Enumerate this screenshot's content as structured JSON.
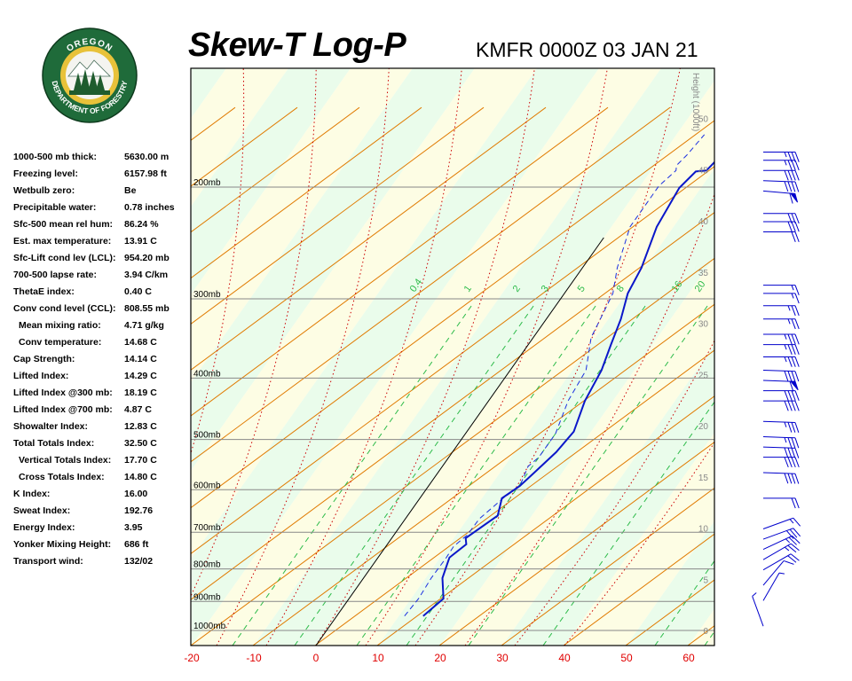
{
  "header": {
    "title": "Skew-T Log-P",
    "station_time": "KMFR 0000Z 03 JAN 21"
  },
  "logo": {
    "top_text": "OREGON",
    "bottom_text": "DEPARTMENT OF FORESTRY",
    "colors": {
      "ring": "#1f6b3a",
      "gold": "#e8c23a",
      "tree": "#1f5c2e"
    }
  },
  "indices": [
    {
      "label": "1000-500 mb thick:",
      "value": "5630.00 m"
    },
    {
      "label": "Freezing level:",
      "value": "6157.98 ft"
    },
    {
      "label": "Wetbulb zero:",
      "value": "Be"
    },
    {
      "label": "Precipitable water:",
      "value": "0.78 inches"
    },
    {
      "label": "Sfc-500 mean rel hum:",
      "value": "86.24 %"
    },
    {
      "label": "Est. max temperature:",
      "value": "13.91 C"
    },
    {
      "label": "Sfc-Lift cond lev (LCL):",
      "value": "954.20 mb"
    },
    {
      "label": "700-500 lapse rate:",
      "value": "3.94 C/km"
    },
    {
      "label": "ThetaE index:",
      "value": "0.40 C"
    },
    {
      "label": "Conv cond level (CCL):",
      "value": "808.55 mb"
    },
    {
      "label": "Mean mixing ratio:",
      "value": "4.71 g/kg",
      "indent": true
    },
    {
      "label": "Conv temperature:",
      "value": "14.68 C",
      "indent": true
    },
    {
      "label": "Cap Strength:",
      "value": "14.14 C"
    },
    {
      "label": "Lifted Index:",
      "value": "14.29 C"
    },
    {
      "label": "Lifted Index @300 mb:",
      "value": "18.19 C"
    },
    {
      "label": "Lifted Index @700 mb:",
      "value": "4.87 C"
    },
    {
      "label": "Showalter Index:",
      "value": "12.83 C"
    },
    {
      "label": "Total Totals Index:",
      "value": "32.50 C"
    },
    {
      "label": "Vertical Totals Index:",
      "value": "17.70 C",
      "indent": true
    },
    {
      "label": "Cross Totals Index:",
      "value": "14.80 C",
      "indent": true
    },
    {
      "label": "K Index:",
      "value": "16.00"
    },
    {
      "label": "Sweat Index:",
      "value": "192.76"
    },
    {
      "label": "Energy Index:",
      "value": "3.95"
    },
    {
      "label": "Yonker Mixing Height:",
      "value": "686 ft"
    },
    {
      "label": "Transport wind:",
      "value": "132/02"
    }
  ],
  "chart_data": {
    "type": "line",
    "x_axis": {
      "label": "",
      "min": -20,
      "max": 64,
      "ticks": [
        -20,
        -10,
        0,
        10,
        20,
        30,
        40,
        50,
        60
      ],
      "tick_labels": [
        "-20",
        "-10",
        "0",
        "10",
        "20",
        "30",
        "40",
        "50",
        "60"
      ]
    },
    "pressure_levels": [
      {
        "p": 200,
        "label": "200mb"
      },
      {
        "p": 300,
        "label": "300mb"
      },
      {
        "p": 400,
        "label": "400mb"
      },
      {
        "p": 500,
        "label": "500mb"
      },
      {
        "p": 600,
        "label": "600mb"
      },
      {
        "p": 700,
        "label": "700mb"
      },
      {
        "p": 800,
        "label": "800mb"
      },
      {
        "p": 900,
        "label": "900mb"
      },
      {
        "p": 1000,
        "label": "1000mb"
      }
    ],
    "height_axis": {
      "label": "Height (1000ft)",
      "ticks": [
        0,
        5,
        10,
        15,
        20,
        25,
        30,
        35,
        40,
        45,
        50
      ],
      "tick_labels": [
        "0",
        "5",
        "10",
        "15",
        "20",
        "25",
        "30",
        "35",
        "40",
        "45",
        "50"
      ]
    },
    "mixing_ratio_labels": [
      "0.4",
      "1",
      "2",
      "3",
      "5",
      "8",
      "16",
      "20"
    ],
    "temperature_profile": [
      [
        13.9,
        1.5
      ],
      [
        15.2,
        3.2
      ],
      [
        12.7,
        5.2
      ],
      [
        11.5,
        7.2
      ],
      [
        12.7,
        8.5
      ],
      [
        11.9,
        9.1
      ],
      [
        14.5,
        11.3
      ],
      [
        13.2,
        13.0
      ],
      [
        14.7,
        14.2
      ],
      [
        15.5,
        15.5
      ],
      [
        16.7,
        17.5
      ],
      [
        17.2,
        19.5
      ],
      [
        15.5,
        22.5
      ],
      [
        14.7,
        25.5
      ],
      [
        13.3,
        28.0
      ],
      [
        12.0,
        30.5
      ],
      [
        10.2,
        33.0
      ],
      [
        9.5,
        35.5
      ],
      [
        7.3,
        39.5
      ],
      [
        6.5,
        43.3
      ],
      [
        7.3,
        44.9
      ],
      [
        8.9,
        45.0
      ],
      [
        9.5,
        46.4
      ],
      [
        10.8,
        47.0
      ],
      [
        12.1,
        47.9
      ]
    ],
    "dewpoint_profile": [
      [
        10.9,
        1.5
      ],
      [
        11.2,
        3.2
      ],
      [
        10.9,
        5.2
      ],
      [
        11.0,
        7.2
      ],
      [
        10.9,
        8.3
      ],
      [
        11.8,
        9.4
      ],
      [
        11.9,
        11.0
      ],
      [
        13.4,
        13.0
      ],
      [
        14.7,
        14.2
      ],
      [
        13.8,
        16.1
      ],
      [
        14.5,
        17.0
      ],
      [
        14.5,
        19.3
      ],
      [
        12.8,
        22.5
      ],
      [
        12.2,
        25.5
      ],
      [
        9.3,
        28.7
      ],
      [
        8.7,
        30.5
      ],
      [
        7.8,
        33.0
      ],
      [
        5.6,
        35.5
      ],
      [
        3.0,
        39.5
      ],
      [
        3.0,
        43.5
      ],
      [
        4.0,
        45.0
      ],
      [
        3.5,
        45.5
      ],
      [
        4.0,
        46.5
      ],
      [
        4.5,
        48.5
      ]
    ],
    "freezing_isotherm": "0 C",
    "grid": true,
    "colors": {
      "temperature": "#0a17c9",
      "dewpoint": "#1a2fe0",
      "dry_adiabat": "#e07a00",
      "moist_adiabat": "#cc0000",
      "mixing_ratio": "#2dbb4a",
      "isotherm_zero": "#000000",
      "band_yellow": "#fdfde4",
      "band_green": "#eafceb",
      "tick_red": "#e00000",
      "barb": "#0000cc"
    }
  },
  "wind_barbs": [
    {
      "h": 0.5,
      "dir": 20,
      "kts": 5
    },
    {
      "h": 3.0,
      "dir": 330,
      "kts": 5
    },
    {
      "h": 4.5,
      "dir": 320,
      "kts": 10
    },
    {
      "h": 6.0,
      "dir": 300,
      "kts": 20
    },
    {
      "h": 7.0,
      "dir": 300,
      "kts": 25
    },
    {
      "h": 8.0,
      "dir": 295,
      "kts": 25
    },
    {
      "h": 9.0,
      "dir": 290,
      "kts": 30
    },
    {
      "h": 10.0,
      "dir": 290,
      "kts": 15
    },
    {
      "h": 13.0,
      "dir": 270,
      "kts": 20
    },
    {
      "h": 15.5,
      "dir": 268,
      "kts": 40
    },
    {
      "h": 17.0,
      "dir": 270,
      "kts": 40
    },
    {
      "h": 18.0,
      "dir": 268,
      "kts": 40
    },
    {
      "h": 19.0,
      "dir": 268,
      "kts": 35
    },
    {
      "h": 20.5,
      "dir": 268,
      "kts": 35
    },
    {
      "h": 22.5,
      "dir": 270,
      "kts": 40
    },
    {
      "h": 23.5,
      "dir": 270,
      "kts": 40
    },
    {
      "h": 24.5,
      "dir": 268,
      "kts": 60
    },
    {
      "h": 25.5,
      "dir": 268,
      "kts": 40
    },
    {
      "h": 26.8,
      "dir": 270,
      "kts": 35
    },
    {
      "h": 28.0,
      "dir": 270,
      "kts": 35
    },
    {
      "h": 29.0,
      "dir": 270,
      "kts": 35
    },
    {
      "h": 30.5,
      "dir": 270,
      "kts": 25
    },
    {
      "h": 31.8,
      "dir": 270,
      "kts": 25
    },
    {
      "h": 33.0,
      "dir": 270,
      "kts": 15
    },
    {
      "h": 33.8,
      "dir": 270,
      "kts": 15
    },
    {
      "h": 39.0,
      "dir": 270,
      "kts": 20
    },
    {
      "h": 40.0,
      "dir": 270,
      "kts": 30
    },
    {
      "h": 40.8,
      "dir": 270,
      "kts": 30
    },
    {
      "h": 43.0,
      "dir": 265,
      "kts": 60
    },
    {
      "h": 44.0,
      "dir": 268,
      "kts": 40
    },
    {
      "h": 45.0,
      "dir": 270,
      "kts": 40
    },
    {
      "h": 46.0,
      "dir": 270,
      "kts": 35
    },
    {
      "h": 46.8,
      "dir": 270,
      "kts": 35
    }
  ]
}
